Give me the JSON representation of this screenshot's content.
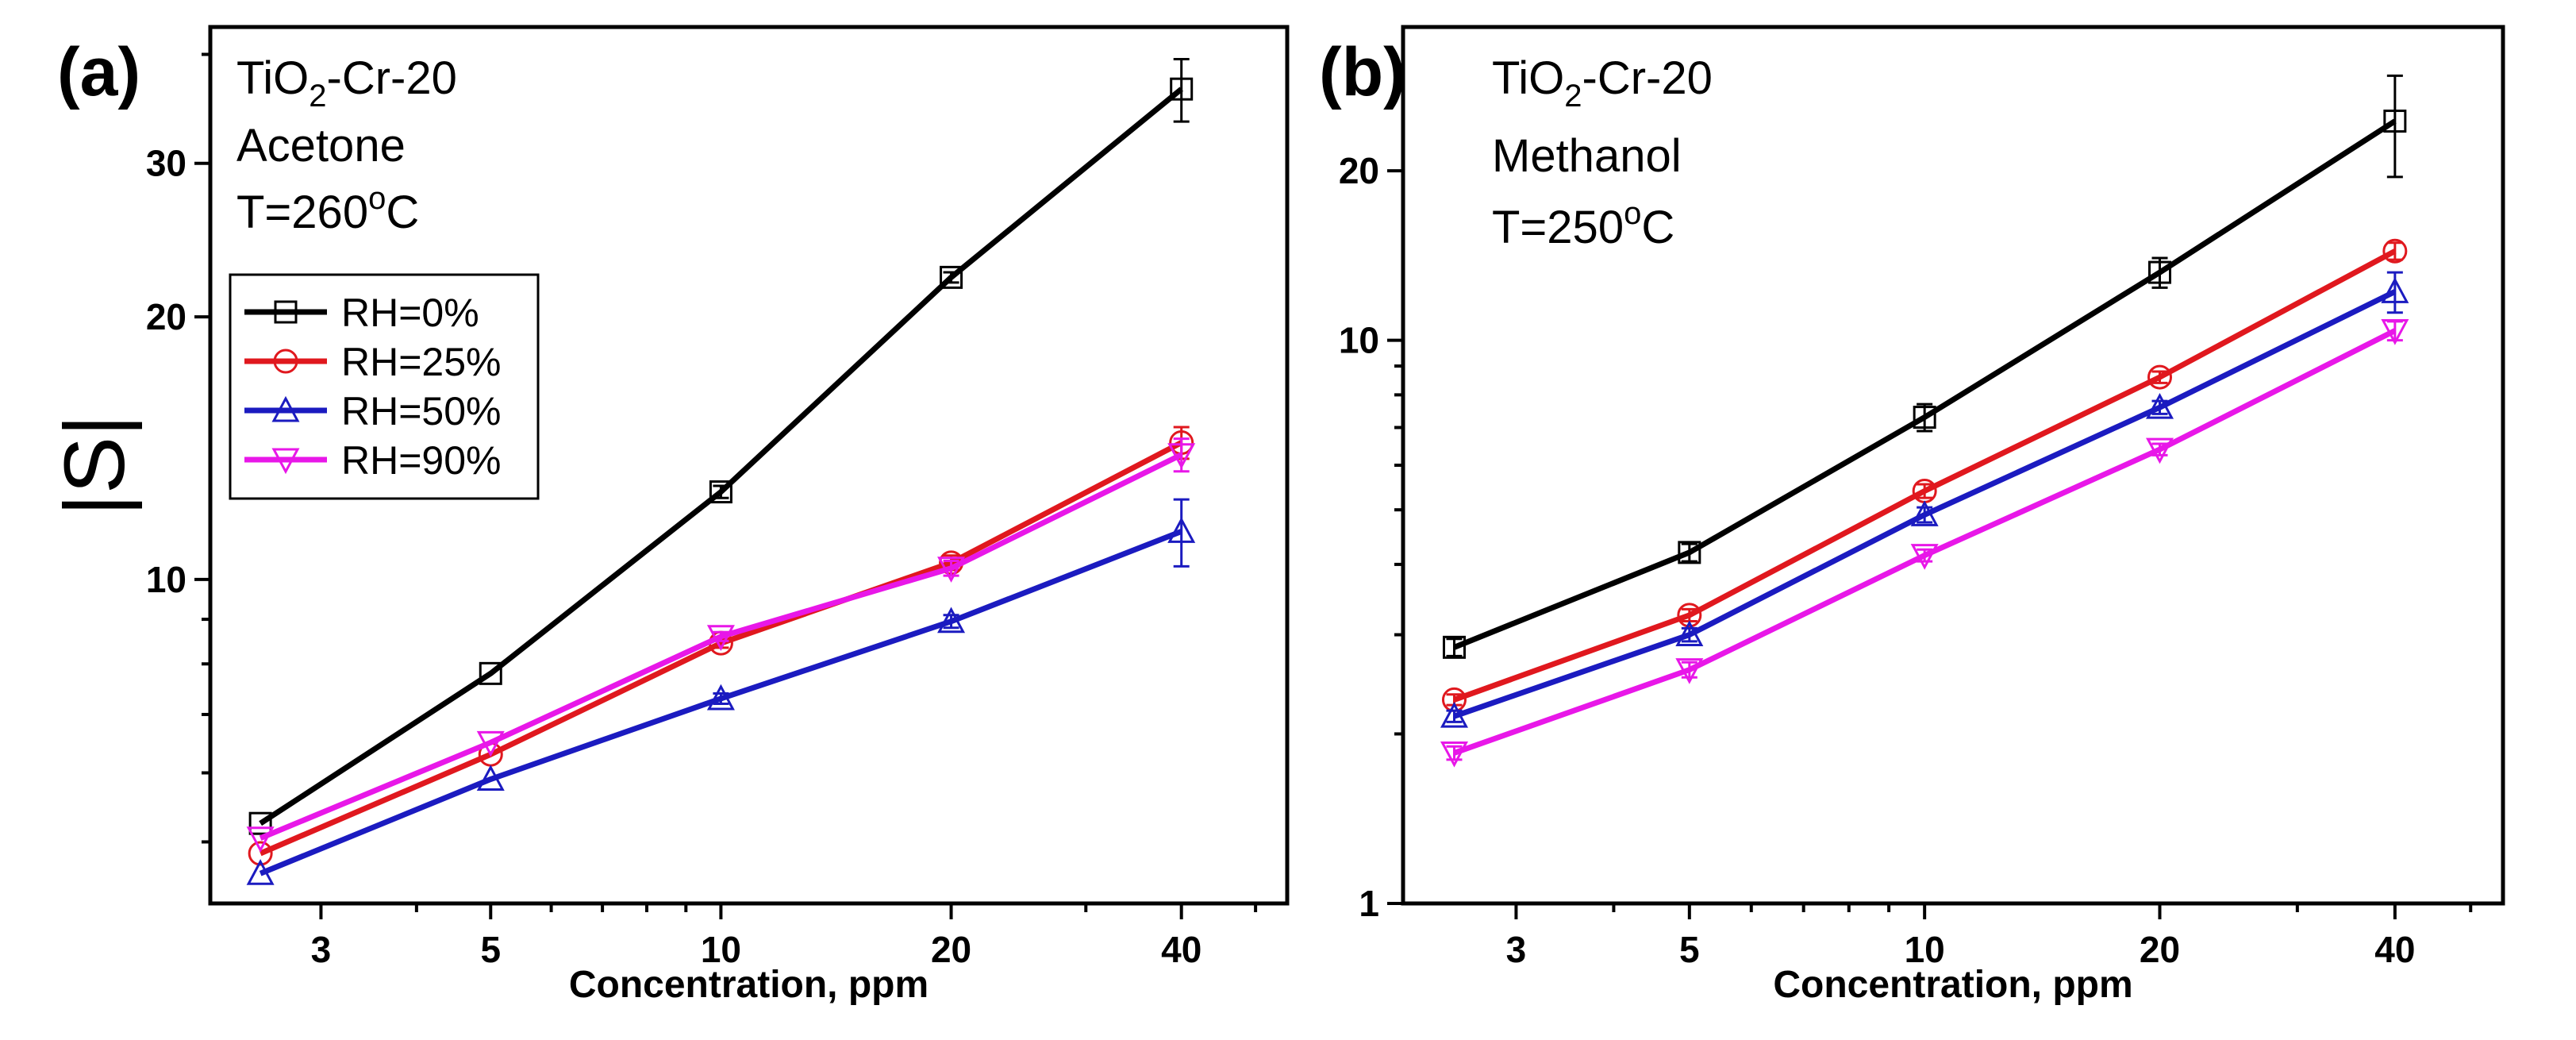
{
  "chart_data": [
    {
      "panel": "(a)",
      "type": "line",
      "xscale": "log",
      "yscale": "log",
      "xlabel": "Concentration, ppm",
      "ylabel": "|S|",
      "xlim": [
        2.15,
        55
      ],
      "ylim": [
        4.25,
        43
      ],
      "x_ticks": [
        3,
        5,
        10,
        20,
        40
      ],
      "x_tick_labels": [
        "3",
        "5",
        "10",
        "20",
        "40"
      ],
      "y_ticks": [
        10,
        20,
        30
      ],
      "y_tick_labels": [
        "10",
        "20",
        "30"
      ],
      "annotation": {
        "material_base": "TiO",
        "material_sub": "2",
        "material_tail": "-Cr-20",
        "gas": "Acetone",
        "temp_prefix": "T=260",
        "temp_sup": "o",
        "temp_unit": "C"
      },
      "legend_position": "upper-left",
      "x": [
        2.5,
        5,
        10,
        20,
        40
      ],
      "series": [
        {
          "name": "RH=0%",
          "color": "#000000",
          "marker": "square",
          "values": [
            5.25,
            7.8,
            12.6,
            22.2,
            36.5
          ],
          "errors": [
            0,
            0,
            0.2,
            0.3,
            3.0
          ]
        },
        {
          "name": "RH=25%",
          "color": "#e0181e",
          "marker": "circle",
          "values": [
            4.85,
            6.3,
            8.45,
            10.45,
            14.35
          ],
          "errors": [
            0,
            0,
            0.1,
            0.2,
            0.6
          ]
        },
        {
          "name": "RH=50%",
          "color": "#1b1bc0",
          "marker": "triangle-up",
          "values": [
            4.6,
            5.9,
            7.3,
            8.95,
            11.35
          ],
          "errors": [
            0,
            0,
            0.1,
            0.15,
            1.0
          ]
        },
        {
          "name": "RH=90%",
          "color": "#e817e8",
          "marker": "triangle-down",
          "values": [
            5.05,
            6.5,
            8.6,
            10.3,
            13.9
          ],
          "errors": [
            0,
            0,
            0.1,
            0.2,
            0.6
          ]
        }
      ]
    },
    {
      "panel": "(b)",
      "type": "line",
      "xscale": "log",
      "yscale": "log",
      "xlabel": "Concentration, ppm",
      "ylabel": "",
      "xlim": [
        2.15,
        55
      ],
      "ylim": [
        1,
        36
      ],
      "x_ticks": [
        3,
        5,
        10,
        20,
        40
      ],
      "x_tick_labels": [
        "3",
        "5",
        "10",
        "20",
        "40"
      ],
      "y_ticks": [
        1,
        10,
        20
      ],
      "y_tick_labels": [
        "1",
        "10",
        "20"
      ],
      "annotation": {
        "material_base": "TiO",
        "material_sub": "2",
        "material_tail": "-Cr-20",
        "gas": "Methanol",
        "temp_prefix": "T=250",
        "temp_sup": "o",
        "temp_unit": "C"
      },
      "x": [
        2.5,
        5,
        10,
        20,
        40
      ],
      "series": [
        {
          "name": "RH=0%",
          "color": "#000000",
          "marker": "square",
          "values": [
            2.85,
            4.2,
            7.3,
            13.2,
            24.5
          ],
          "errors": [
            0.1,
            0.15,
            0.4,
            0.8,
            5.0
          ]
        },
        {
          "name": "RH=25%",
          "color": "#e0181e",
          "marker": "circle",
          "values": [
            2.3,
            3.25,
            5.4,
            8.6,
            14.4
          ],
          "errors": [
            0.05,
            0.08,
            0.15,
            0.2,
            0.5
          ]
        },
        {
          "name": "RH=50%",
          "color": "#1b1bc0",
          "marker": "triangle-up",
          "values": [
            2.15,
            3.0,
            4.9,
            7.6,
            12.2
          ],
          "errors": [
            0.05,
            0.08,
            0.15,
            0.2,
            1.0
          ]
        },
        {
          "name": "RH=90%",
          "color": "#e817e8",
          "marker": "triangle-down",
          "values": [
            1.85,
            2.6,
            4.15,
            6.4,
            10.4
          ],
          "errors": [
            0.05,
            0.08,
            0.1,
            0.15,
            0.4
          ]
        }
      ]
    }
  ]
}
